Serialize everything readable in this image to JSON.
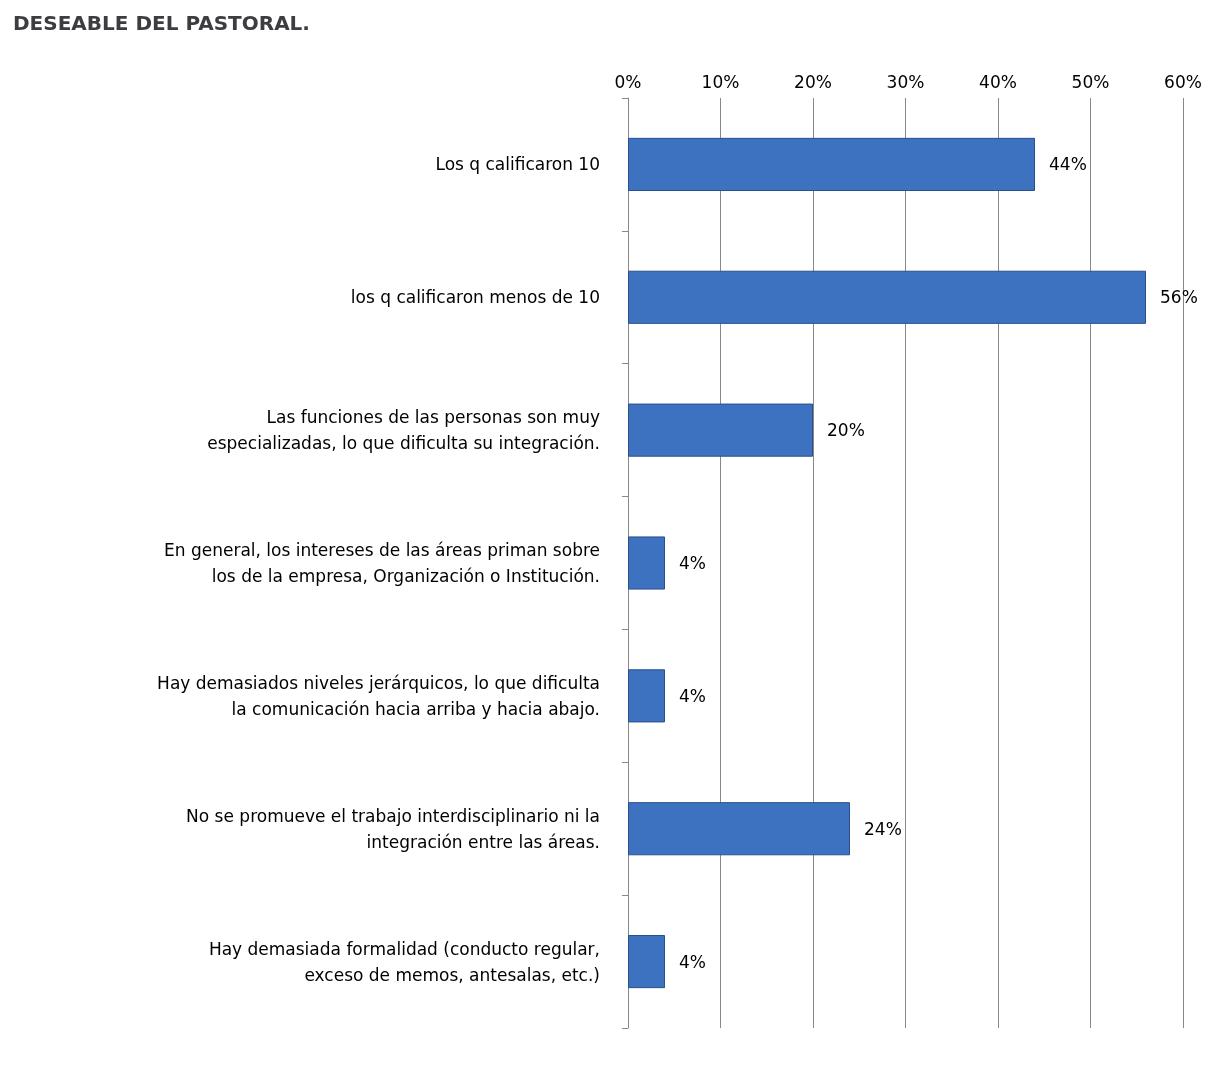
{
  "chart_data": {
    "type": "bar",
    "orientation": "horizontal",
    "title": "DESEABLE DEL PASTORAL.",
    "categories": [
      "Los q calificaron 10",
      "los q calificaron menos de 10",
      "Las funciones de las personas son muy\nespecializadas, lo que dificulta su integración.",
      "En general, los intereses de las áreas priman sobre\nlos de la empresa, Organización o Institución.",
      "Hay demasiados niveles jerárquicos, lo que dificulta\nla comunicación hacia arriba y hacia abajo.",
      "No se promueve el trabajo interdisciplinario ni la\nintegración entre las áreas.",
      "Hay demasiada formalidad (conducto regular,\nexceso de memos, antesalas, etc.)"
    ],
    "values": [
      44,
      56,
      20,
      4,
      4,
      24,
      4
    ],
    "value_labels": [
      "44%",
      "56%",
      "20%",
      "4%",
      "4%",
      "24%",
      "4%"
    ],
    "color": "#3d72c0",
    "xlim": [
      0,
      60
    ],
    "xticks": [
      {
        "value": 0,
        "label": "0%"
      },
      {
        "value": 10,
        "label": "10%"
      },
      {
        "value": 20,
        "label": "20%"
      },
      {
        "value": 30,
        "label": "30%"
      },
      {
        "value": 40,
        "label": "40%"
      },
      {
        "value": 50,
        "label": "50%"
      },
      {
        "value": 60,
        "label": "60%"
      }
    ],
    "grid": "x"
  }
}
